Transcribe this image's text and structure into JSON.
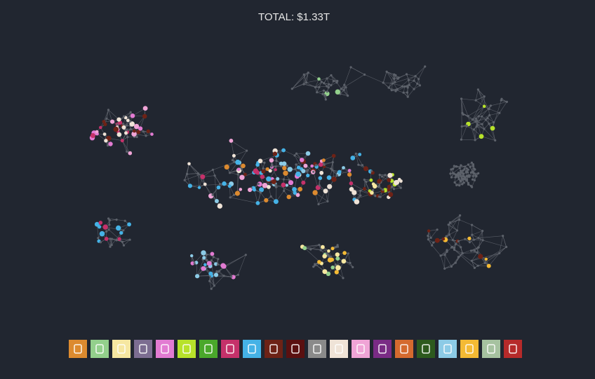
{
  "header": {
    "total": "TOTAL: $1.33T"
  }
}
